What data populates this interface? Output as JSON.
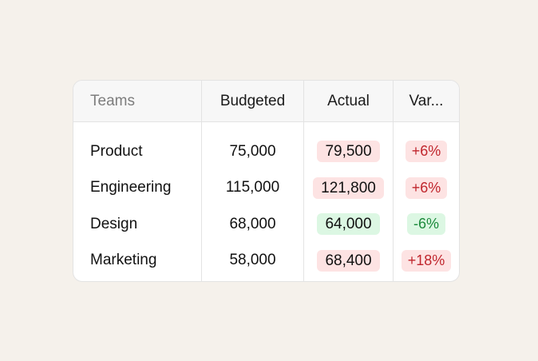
{
  "table": {
    "headers": {
      "teams": "Teams",
      "budgeted": "Budgeted",
      "actual": "Actual",
      "variance": "Var..."
    },
    "rows": [
      {
        "team": "Product",
        "budgeted": "75,000",
        "actual": "79,500",
        "variance": "+6%",
        "trend": "up"
      },
      {
        "team": "Engineering",
        "budgeted": "115,000",
        "actual": "121,800",
        "variance": "+6%",
        "trend": "up"
      },
      {
        "team": "Design",
        "budgeted": "68,000",
        "actual": "64,000",
        "variance": "-6%",
        "trend": "down"
      },
      {
        "team": "Marketing",
        "budgeted": "58,000",
        "actual": "68,400",
        "variance": "+18%",
        "trend": "up"
      }
    ]
  },
  "colors": {
    "over_budget_bg": "#fde3e3",
    "over_budget_text": "#c0262d",
    "under_budget_bg": "#dcf7e3",
    "under_budget_text": "#1c8a3c"
  }
}
